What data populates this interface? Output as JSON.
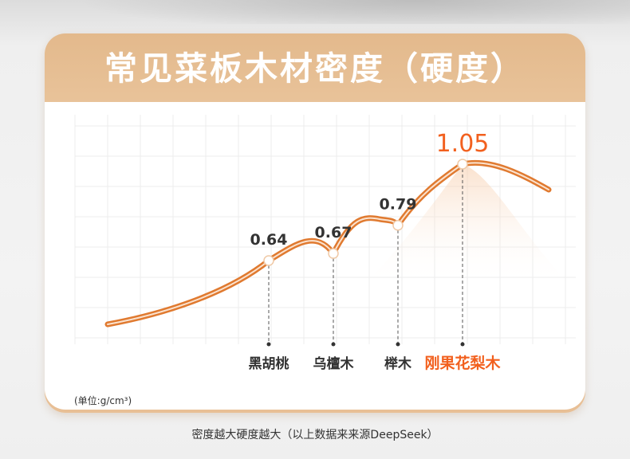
{
  "card": {
    "title": "常见菜板木材密度（硬度）",
    "unit_label": "(单位:g/cm³)"
  },
  "footnote": "密度越大硬度越大（以上数据来来源DeepSeek）",
  "colors": {
    "accent": "#f2601e",
    "line": "#e07a30",
    "label": "#333333"
  },
  "chart_data": {
    "type": "line",
    "title": "常见菜板木材密度（硬度）",
    "unit": "g/cm³",
    "categories": [
      "黑胡桃",
      "乌檀木",
      "榉木",
      "刚果花梨木"
    ],
    "values": [
      0.64,
      0.67,
      0.79,
      1.05
    ],
    "value_labels": [
      "0.64",
      "0.67",
      "0.79",
      "1.05"
    ],
    "highlight_index": 3,
    "grid": true
  }
}
